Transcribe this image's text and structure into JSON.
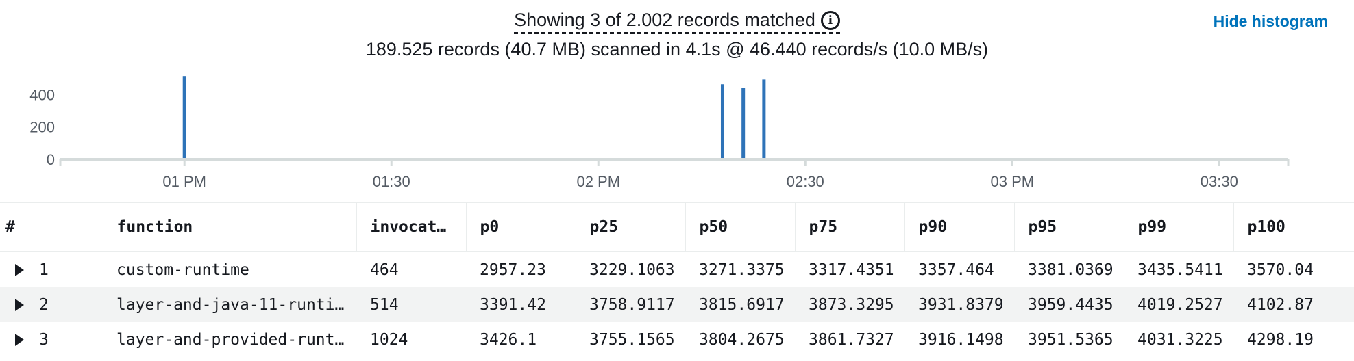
{
  "summary": {
    "line1": "Showing 3 of 2.002 records matched",
    "line2": "189.525 records (40.7 MB) scanned in 4.1s @ 46.440 records/s (10.0 MB/s)"
  },
  "hide_histogram_label": "Hide histogram",
  "icons": {
    "info": "info-icon",
    "expand": "expand-triangle-icon"
  },
  "colors": {
    "bar": "#2e73b8",
    "link": "#0073bb",
    "alt_row": "#f2f3f3"
  },
  "chart_data": {
    "type": "bar",
    "y_ticks": [
      0,
      200,
      400
    ],
    "ylim": [
      0,
      520
    ],
    "x_ticks": [
      "01 PM",
      "01:30",
      "02 PM",
      "02:30",
      "03 PM",
      "03:30"
    ],
    "xlim": [
      "12:42",
      "03:40"
    ],
    "x": [
      "01:00",
      "02:18",
      "02:21",
      "02:24"
    ],
    "values": [
      515,
      464,
      443,
      493
    ],
    "grid": false
  },
  "table": {
    "columns": [
      "#",
      "function",
      "invocat…",
      "p0",
      "p25",
      "p50",
      "p75",
      "p90",
      "p95",
      "p99",
      "p100"
    ],
    "rows": [
      [
        "1",
        "custom-runtime",
        "464",
        "2957.23",
        "3229.1063",
        "3271.3375",
        "3317.4351",
        "3357.464",
        "3381.0369",
        "3435.5411",
        "3570.04"
      ],
      [
        "2",
        "layer-and-java-11-runti…",
        "514",
        "3391.42",
        "3758.9117",
        "3815.6917",
        "3873.3295",
        "3931.8379",
        "3959.4435",
        "4019.2527",
        "4102.87"
      ],
      [
        "3",
        "layer-and-provided-runt…",
        "1024",
        "3426.1",
        "3755.1565",
        "3804.2675",
        "3861.7327",
        "3916.1498",
        "3951.5365",
        "4031.3225",
        "4298.19"
      ]
    ]
  }
}
